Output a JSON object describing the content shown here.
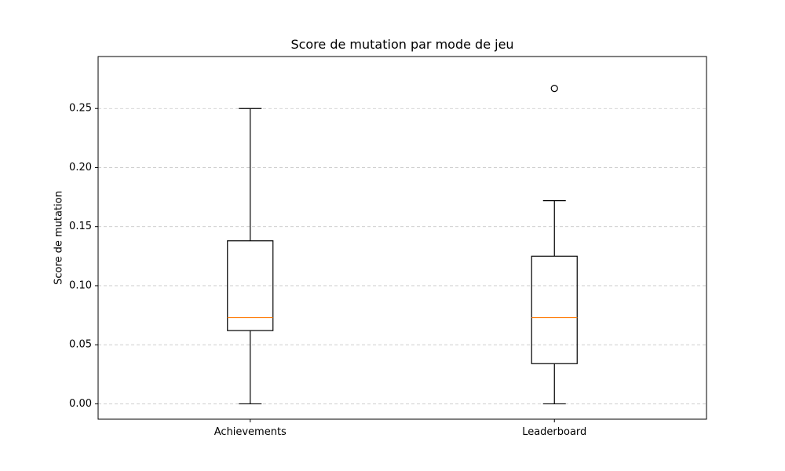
{
  "chart_data": {
    "type": "box",
    "title": "Score de mutation par mode de jeu",
    "xlabel": "",
    "ylabel": "Score de mutation",
    "ylim": [
      -0.013,
      0.294
    ],
    "yticks": [
      0.0,
      0.05,
      0.1,
      0.15,
      0.2,
      0.25
    ],
    "ytick_labels": [
      "0.00",
      "0.05",
      "0.10",
      "0.15",
      "0.20",
      "0.25"
    ],
    "grid": "y-dashed",
    "categories": [
      "Achievements",
      "Leaderboard"
    ],
    "boxes": [
      {
        "category": "Achievements",
        "whisker_low": 0.0,
        "q1": 0.062,
        "median": 0.073,
        "q3": 0.138,
        "whisker_high": 0.25,
        "outliers": []
      },
      {
        "category": "Leaderboard",
        "whisker_low": 0.0,
        "q1": 0.034,
        "median": 0.073,
        "q3": 0.125,
        "whisker_high": 0.172,
        "outliers": [
          0.267
        ]
      }
    ],
    "colors": {
      "box": "#000000",
      "median": "#ff7f0e",
      "grid": "#c8c8c8"
    }
  }
}
